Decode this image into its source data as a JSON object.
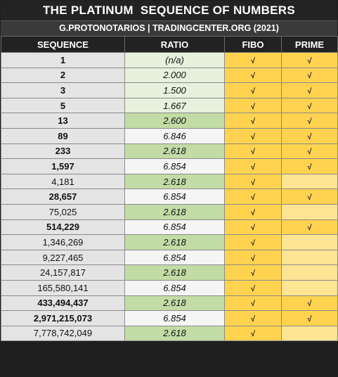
{
  "title": "THE PLATINUM  SEQUENCE OF NUMBERS",
  "subtitle": "G.PROTONOTARIOS | TRADINGCENTER.ORG (2021)",
  "headers": [
    "SEQUENCE",
    "RATIO",
    "FIBO",
    "PRIME"
  ],
  "check_mark": "√",
  "colors": {
    "header_bg": "#222222",
    "sequence_bg": "#e4e4e4",
    "ratio_green": "#c3dca6",
    "ratio_light": "#e6f1de",
    "ratio_white": "#f5f5f5",
    "fibo_yellow": "#ffd34f",
    "prime_empty": "#ffe493"
  },
  "rows": [
    {
      "sequence": "1",
      "ratio": "(n/a)",
      "ratio_style": "light",
      "fibo": true,
      "prime": true,
      "bold": true
    },
    {
      "sequence": "2",
      "ratio": "2.000",
      "ratio_style": "light",
      "fibo": true,
      "prime": true,
      "bold": true
    },
    {
      "sequence": "3",
      "ratio": "1.500",
      "ratio_style": "light",
      "fibo": true,
      "prime": true,
      "bold": true
    },
    {
      "sequence": "5",
      "ratio": "1.667",
      "ratio_style": "light",
      "fibo": true,
      "prime": true,
      "bold": true
    },
    {
      "sequence": "13",
      "ratio": "2.600",
      "ratio_style": "green",
      "fibo": true,
      "prime": true,
      "bold": true
    },
    {
      "sequence": "89",
      "ratio": "6.846",
      "ratio_style": "white",
      "fibo": true,
      "prime": true,
      "bold": true
    },
    {
      "sequence": "233",
      "ratio": "2.618",
      "ratio_style": "green",
      "fibo": true,
      "prime": true,
      "bold": true
    },
    {
      "sequence": "1,597",
      "ratio": "6.854",
      "ratio_style": "white",
      "fibo": true,
      "prime": true,
      "bold": true
    },
    {
      "sequence": "4,181",
      "ratio": "2.618",
      "ratio_style": "green",
      "fibo": true,
      "prime": false,
      "bold": false
    },
    {
      "sequence": "28,657",
      "ratio": "6.854",
      "ratio_style": "white",
      "fibo": true,
      "prime": true,
      "bold": true
    },
    {
      "sequence": "75,025",
      "ratio": "2.618",
      "ratio_style": "green",
      "fibo": true,
      "prime": false,
      "bold": false
    },
    {
      "sequence": "514,229",
      "ratio": "6.854",
      "ratio_style": "white",
      "fibo": true,
      "prime": true,
      "bold": true
    },
    {
      "sequence": "1,346,269",
      "ratio": "2.618",
      "ratio_style": "green",
      "fibo": true,
      "prime": false,
      "bold": false
    },
    {
      "sequence": "9,227,465",
      "ratio": "6.854",
      "ratio_style": "white",
      "fibo": true,
      "prime": false,
      "bold": false
    },
    {
      "sequence": "24,157,817",
      "ratio": "2.618",
      "ratio_style": "green",
      "fibo": true,
      "prime": false,
      "bold": false
    },
    {
      "sequence": "165,580,141",
      "ratio": "6.854",
      "ratio_style": "white",
      "fibo": true,
      "prime": false,
      "bold": false
    },
    {
      "sequence": "433,494,437",
      "ratio": "2.618",
      "ratio_style": "green",
      "fibo": true,
      "prime": true,
      "bold": true
    },
    {
      "sequence": "2,971,215,073",
      "ratio": "6.854",
      "ratio_style": "white",
      "fibo": true,
      "prime": true,
      "bold": true
    },
    {
      "sequence": "7,778,742,049",
      "ratio": "2.618",
      "ratio_style": "green",
      "fibo": true,
      "prime": false,
      "bold": false
    }
  ]
}
